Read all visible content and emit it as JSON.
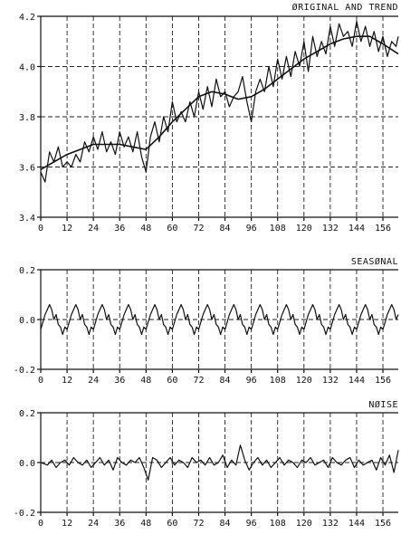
{
  "chart_data": [
    {
      "type": "line",
      "title": "ØRIGINAL AND TREND",
      "x_ticks": [
        0,
        12,
        24,
        36,
        48,
        60,
        72,
        84,
        96,
        108,
        120,
        132,
        144,
        156
      ],
      "x_tick_labels": [
        "0",
        "12",
        "24",
        "36",
        "48",
        "60",
        "72",
        "84",
        "96",
        "108",
        "120",
        "132",
        "144",
        "156"
      ],
      "xlim": [
        0,
        163
      ],
      "ylim": [
        3.4,
        4.2
      ],
      "y_ticks": [
        3.4,
        3.6,
        3.8,
        4.0,
        4.2
      ],
      "y_tick_labels": [
        "3.4",
        "3.6",
        "3.8",
        "4.0",
        "4.2"
      ],
      "grid": true,
      "series": [
        {
          "x": [
            0,
            2,
            4,
            6,
            8,
            10,
            12,
            14,
            16,
            18,
            20,
            22,
            24,
            26,
            28,
            30,
            32,
            34,
            36,
            38,
            40,
            42,
            44,
            46,
            48,
            50,
            52,
            54,
            56,
            58,
            60,
            62,
            64,
            66,
            68,
            70,
            72,
            74,
            76,
            78,
            80,
            82,
            84,
            86,
            88,
            90,
            92,
            94,
            96,
            98,
            100,
            102,
            104,
            106,
            108,
            110,
            112,
            114,
            116,
            118,
            120,
            122,
            124,
            126,
            128,
            130,
            132,
            134,
            136,
            138,
            140,
            142,
            144,
            146,
            148,
            150,
            152,
            154,
            156,
            158,
            160,
            162,
            163
          ],
          "values": [
            3.58,
            3.54,
            3.66,
            3.62,
            3.68,
            3.6,
            3.62,
            3.6,
            3.65,
            3.62,
            3.7,
            3.66,
            3.72,
            3.67,
            3.74,
            3.66,
            3.7,
            3.65,
            3.74,
            3.68,
            3.72,
            3.66,
            3.74,
            3.64,
            3.58,
            3.72,
            3.78,
            3.7,
            3.8,
            3.74,
            3.86,
            3.78,
            3.82,
            3.78,
            3.86,
            3.8,
            3.9,
            3.83,
            3.92,
            3.84,
            3.95,
            3.88,
            3.9,
            3.84,
            3.88,
            3.9,
            3.96,
            3.86,
            3.78,
            3.9,
            3.95,
            3.9,
            4.0,
            3.92,
            4.03,
            3.95,
            4.04,
            3.96,
            4.06,
            4.0,
            4.1,
            3.98,
            4.12,
            4.04,
            4.1,
            4.05,
            4.16,
            4.08,
            4.17,
            4.12,
            4.14,
            4.08,
            4.18,
            4.1,
            4.16,
            4.08,
            4.14,
            4.06,
            4.12,
            4.04,
            4.1,
            4.08,
            4.12
          ]
        },
        {
          "x": [
            0,
            6,
            12,
            18,
            24,
            30,
            36,
            42,
            48,
            54,
            60,
            66,
            72,
            78,
            84,
            90,
            96,
            102,
            108,
            114,
            120,
            126,
            132,
            138,
            144,
            150,
            156,
            163
          ],
          "values": [
            3.59,
            3.62,
            3.65,
            3.67,
            3.69,
            3.69,
            3.69,
            3.68,
            3.67,
            3.72,
            3.78,
            3.83,
            3.88,
            3.9,
            3.89,
            3.87,
            3.88,
            3.91,
            3.95,
            3.99,
            4.03,
            4.06,
            4.09,
            4.11,
            4.12,
            4.12,
            4.09,
            4.05
          ]
        }
      ]
    },
    {
      "type": "line",
      "title": "SEASØNAL",
      "x_ticks": [
        0,
        12,
        24,
        36,
        48,
        60,
        72,
        84,
        96,
        108,
        120,
        132,
        144,
        156
      ],
      "x_tick_labels": [
        "0",
        "12",
        "24",
        "36",
        "48",
        "60",
        "72",
        "84",
        "96",
        "108",
        "120",
        "132",
        "144",
        "156"
      ],
      "xlim": [
        0,
        163
      ],
      "ylim": [
        -0.2,
        0.2
      ],
      "y_ticks": [
        -0.2,
        0.0,
        0.2
      ],
      "y_tick_labels": [
        "-0.2",
        "0.0",
        "0.2"
      ],
      "grid": true,
      "seasonal_pattern": [
        -0.04,
        -0.01,
        0.02,
        0.04,
        0.06,
        0.04,
        0.0,
        0.02,
        -0.02,
        -0.03,
        -0.06,
        -0.03
      ],
      "period": 12,
      "x_max": 163
    },
    {
      "type": "line",
      "title": "NØISE",
      "x_ticks": [
        0,
        12,
        24,
        36,
        48,
        60,
        72,
        84,
        96,
        108,
        120,
        132,
        144,
        156
      ],
      "x_tick_labels": [
        "0",
        "12",
        "24",
        "36",
        "48",
        "60",
        "72",
        "84",
        "96",
        "108",
        "120",
        "132",
        "144",
        "156"
      ],
      "xlim": [
        0,
        163
      ],
      "ylim": [
        -0.2,
        0.2
      ],
      "y_ticks": [
        -0.2,
        0.0,
        0.2
      ],
      "y_tick_labels": [
        "-0.2",
        "0.0",
        "0.2"
      ],
      "grid": true,
      "series": [
        {
          "x": [
            0,
            3,
            5,
            7,
            9,
            11,
            13,
            15,
            17,
            19,
            21,
            23,
            25,
            27,
            29,
            31,
            33,
            35,
            37,
            39,
            41,
            43,
            45,
            47,
            49,
            51,
            53,
            55,
            57,
            59,
            61,
            63,
            65,
            67,
            69,
            71,
            73,
            75,
            77,
            79,
            81,
            83,
            85,
            87,
            89,
            91,
            93,
            95,
            97,
            99,
            101,
            103,
            105,
            107,
            109,
            111,
            113,
            115,
            117,
            119,
            121,
            123,
            125,
            127,
            129,
            131,
            133,
            135,
            137,
            139,
            141,
            143,
            145,
            147,
            149,
            151,
            153,
            155,
            157,
            159,
            161,
            163
          ],
          "values": [
            0.0,
            -0.01,
            0.01,
            -0.02,
            0.0,
            0.01,
            -0.01,
            0.02,
            0.0,
            -0.01,
            0.01,
            -0.02,
            0.0,
            0.02,
            -0.01,
            0.01,
            -0.03,
            0.02,
            0.0,
            -0.01,
            0.01,
            0.0,
            0.02,
            -0.02,
            -0.07,
            0.02,
            0.01,
            -0.02,
            0.0,
            0.02,
            -0.01,
            0.01,
            0.0,
            -0.02,
            0.02,
            0.0,
            0.01,
            -0.01,
            0.02,
            -0.01,
            0.0,
            0.03,
            -0.02,
            0.01,
            -0.01,
            0.07,
            0.01,
            -0.03,
            0.0,
            0.02,
            -0.01,
            0.01,
            -0.02,
            0.0,
            0.02,
            -0.01,
            0.01,
            0.0,
            -0.02,
            0.01,
            0.0,
            0.02,
            -0.01,
            0.0,
            0.01,
            -0.02,
            0.02,
            0.0,
            -0.01,
            0.01,
            0.02,
            -0.02,
            0.01,
            -0.01,
            0.0,
            0.01,
            -0.03,
            0.02,
            -0.01,
            0.03,
            -0.04,
            0.05
          ]
        }
      ]
    }
  ]
}
